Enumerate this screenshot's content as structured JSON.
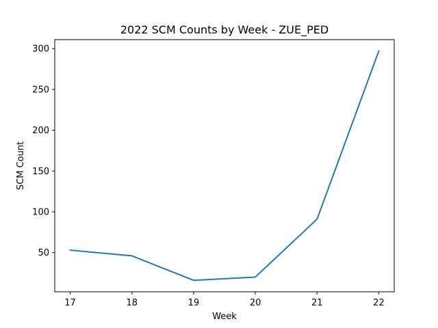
{
  "chart_data": {
    "type": "line",
    "title": "2022 SCM Counts by Week - ZUE_PED",
    "xlabel": "Week",
    "ylabel": "SCM Count",
    "x": [
      17,
      18,
      19,
      20,
      21,
      22
    ],
    "series": [
      {
        "values": [
          53,
          46,
          16,
          20,
          91,
          297
        ],
        "color": "#1f77b4"
      }
    ],
    "x_ticks": [
      17,
      18,
      19,
      20,
      21,
      22
    ],
    "y_ticks": [
      50,
      100,
      150,
      200,
      250,
      300
    ],
    "xlim": [
      16.75,
      22.25
    ],
    "ylim": [
      1.95,
      311.05
    ],
    "grid": false
  }
}
